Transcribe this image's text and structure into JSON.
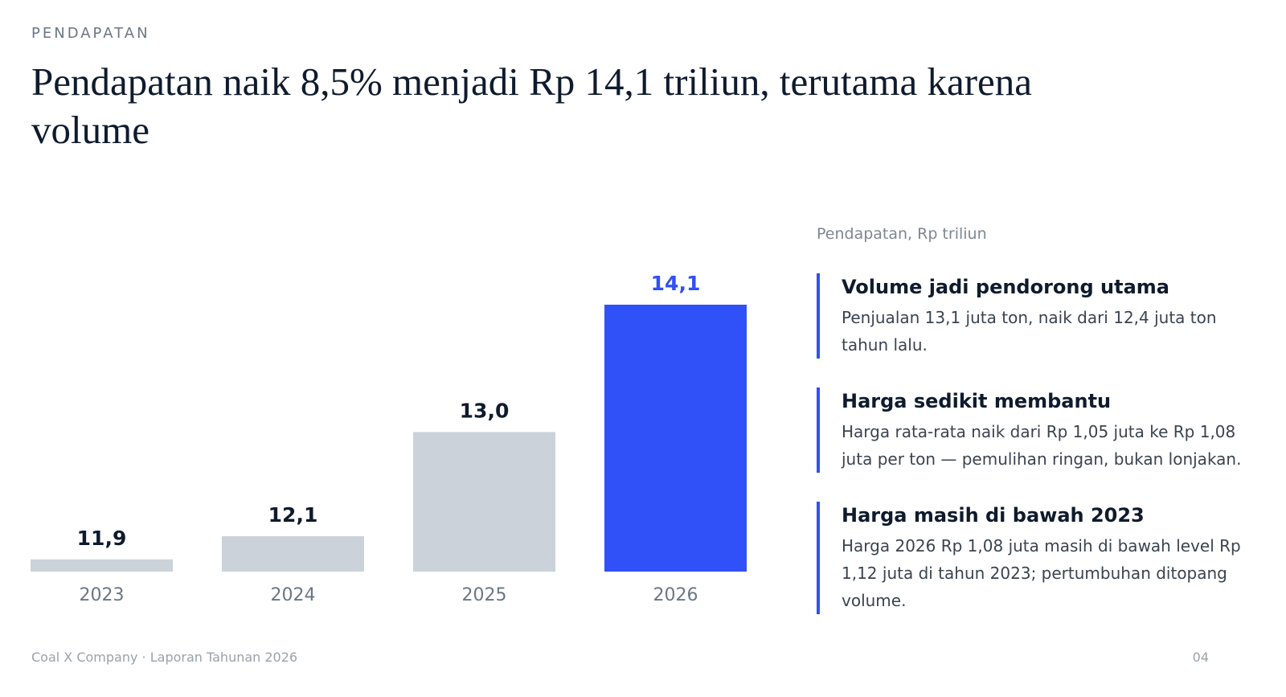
{
  "eyebrow": "PENDAPATAN",
  "headline": "Pendapatan naik 8,5% menjadi Rp 14,1 triliun, terutama karena volume",
  "chart_data": {
    "type": "bar",
    "categories": [
      "2023",
      "2024",
      "2025",
      "2026"
    ],
    "values": [
      11.9,
      12.1,
      13.0,
      14.1
    ],
    "value_labels": [
      "11,9",
      "12,1",
      "13,0",
      "14,1"
    ],
    "ylim": [
      0,
      14.1
    ],
    "highlight_index": 3,
    "colors": {
      "default": "#cbd2d9",
      "highlight": "#3050f8",
      "label_default": "#0f1b2d",
      "label_highlight": "#3050f8",
      "axis_label": "#6b7683"
    },
    "grid": false
  },
  "panel": {
    "title": "Pendapatan, Rp triliun",
    "callouts": [
      {
        "title": "Volume jadi pendorong utama",
        "body": "Penjualan 13,1 juta ton, naik dari 12,4 juta ton tahun lalu."
      },
      {
        "title": "Harga sedikit membantu",
        "body": "Harga rata-rata naik dari Rp 1,05 juta ke Rp 1,08 juta per ton — pemulihan ringan, bukan lonjakan."
      },
      {
        "title": "Harga masih di bawah 2023",
        "body": "Harga 2026 Rp 1,08 juta masih di bawah level Rp 1,12 juta di tahun 2023; pertumbuhan ditopang volume."
      }
    ]
  },
  "footer": {
    "left": "Coal X Company · Laporan Tahunan 2026",
    "page": "04"
  }
}
